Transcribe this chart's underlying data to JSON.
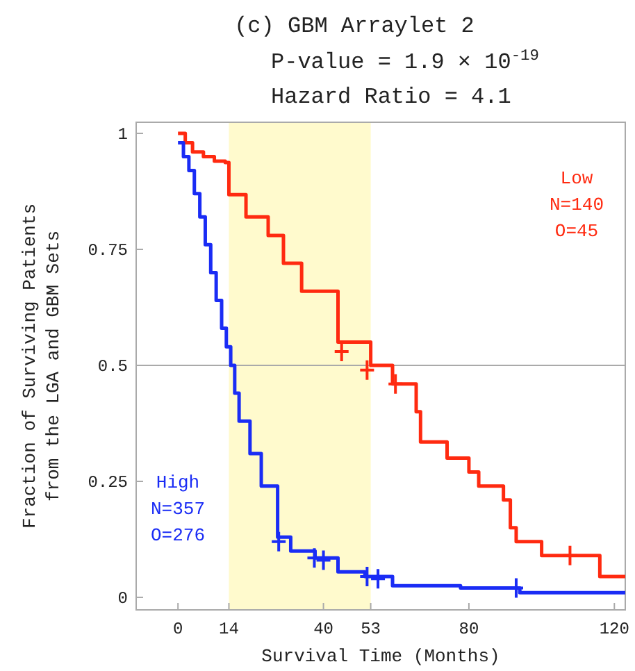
{
  "chart_data": {
    "type": "step",
    "title": "(c) GBM Arraylet 2",
    "subtitle": "P-value = 1.9 × 10$^{-19}$\nHazard Ratio = 4.1",
    "xlabel": "Survival Time (Months)",
    "ylabel": "Fraction of Surviving Patients\nfrom the LGA and GBM Sets",
    "xlim": [
      -11.5,
      123
    ],
    "ylim": [
      -0.027,
      1.024
    ],
    "xticks": [
      0,
      14,
      40,
      53,
      80,
      120
    ],
    "yticks": [
      0,
      0.25,
      0.5,
      0.75,
      1
    ],
    "grid": false,
    "series": [
      {
        "name": "Low",
        "color": "#ff2a10",
        "x": [
          0,
          2,
          4,
          7,
          10,
          13,
          14,
          18.7,
          24.8,
          29,
          34,
          44,
          53,
          59,
          65.5,
          66.7,
          74,
          80,
          82.7,
          89.5,
          91.4,
          93,
          100,
          116,
          123
        ],
        "values": [
          1,
          0.98,
          0.96,
          0.95,
          0.94,
          0.937,
          0.868,
          0.82,
          0.78,
          0.72,
          0.66,
          0.55,
          0.5,
          0.46,
          0.4,
          0.335,
          0.3,
          0.27,
          0.24,
          0.21,
          0.15,
          0.12,
          0.09,
          0.045,
          0.045
        ]
      },
      {
        "name": "High",
        "color": "#1a2cf5",
        "x": [
          0,
          1.5,
          3,
          4.5,
          6,
          7.5,
          9,
          10.5,
          12,
          13.3,
          14.5,
          15.6,
          16.8,
          19.8,
          22.9,
          27.4,
          31,
          37.7,
          44,
          51.4,
          59,
          77.7,
          94,
          123
        ],
        "values": [
          0.98,
          0.95,
          0.92,
          0.87,
          0.82,
          0.76,
          0.7,
          0.64,
          0.58,
          0.54,
          0.5,
          0.44,
          0.38,
          0.31,
          0.24,
          0.13,
          0.1,
          0.085,
          0.055,
          0.045,
          0.025,
          0.02,
          0.01,
          0.01
        ]
      },
      {
        "type": "scatter",
        "marker": "cross",
        "color": "#ff2a10",
        "x": [
          45,
          52,
          59.8,
          107.8
        ],
        "values": [
          0.53,
          0.49,
          0.46,
          0.09
        ]
      },
      {
        "type": "scatter",
        "marker": "cross",
        "color": "#1a2cf5",
        "x": [
          27.7,
          37.5,
          40,
          52,
          55,
          93
        ],
        "values": [
          0.12,
          0.085,
          0.08,
          0.045,
          0.04,
          0.02
        ]
      }
    ],
    "annotations": [
      "N=140",
      "O=45",
      "N=357",
      "O=276"
    ],
    "ref_lines": [
      {
        "axis": "y",
        "value": 0.5,
        "color": "#aaaaaa"
      }
    ],
    "bands": [
      {
        "axis": "x",
        "from": 14,
        "to": 53,
        "color": "#fffacd"
      }
    ]
  }
}
